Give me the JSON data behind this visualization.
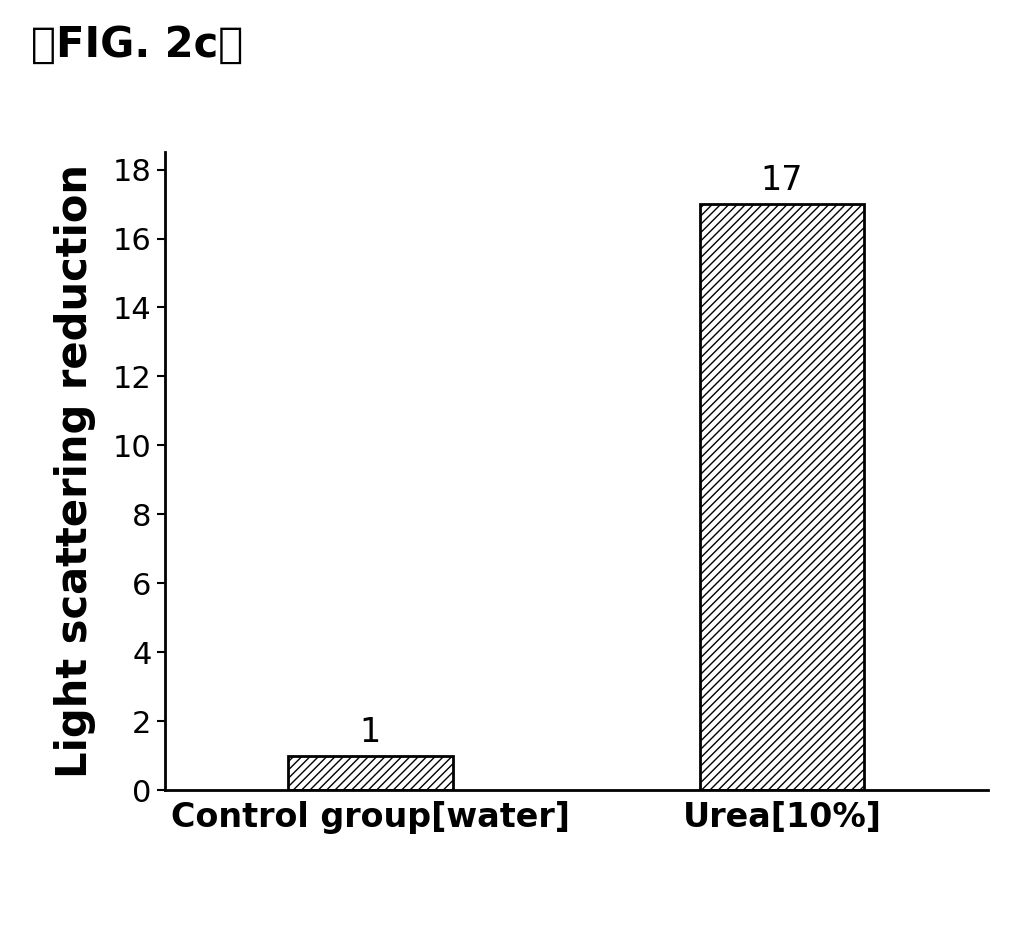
{
  "categories": [
    "Control group[water]",
    "Urea[10%]"
  ],
  "values": [
    1,
    17
  ],
  "bar_labels": [
    "1",
    "17"
  ],
  "ylabel": "Light scattering reduction",
  "ylim": [
    0,
    18.5
  ],
  "yticks": [
    0,
    2,
    4,
    6,
    8,
    10,
    12,
    14,
    16,
    18
  ],
  "title": "【FIG. 2c】",
  "title_fontsize": 30,
  "ylabel_fontsize": 30,
  "xtick_fontsize": 24,
  "ytick_fontsize": 22,
  "bar_label_fontsize": 24,
  "hatch_pattern": "////",
  "bar_color": "white",
  "bar_edgecolor": "black",
  "bar_width": 0.4,
  "background_color": "white"
}
